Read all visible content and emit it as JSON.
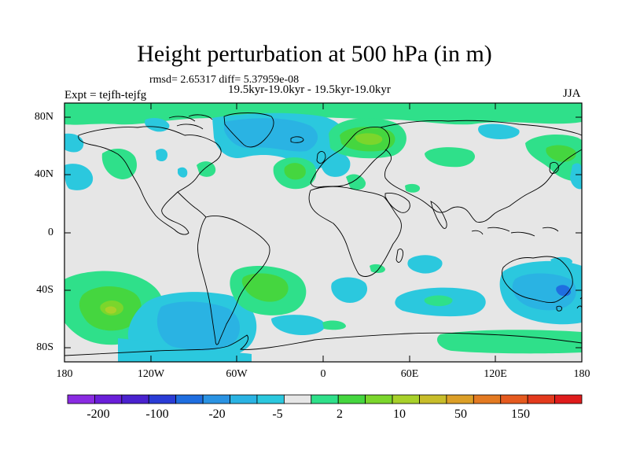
{
  "title": "Height perturbation at 500 hPa (in m)",
  "stats": "rmsd= 2.65317  diff= 5.37959e-08",
  "subtitle": "19.5kyr-19.0kyr - 19.5kyr-19.0kyr",
  "experiment": "Expt = tejfh-tejfg",
  "season": "JJA",
  "lat_ticks": [
    "80N",
    "40N",
    "0",
    "40S",
    "80S"
  ],
  "lon_ticks": [
    "180",
    "120W",
    "60W",
    "0",
    "60E",
    "120E",
    "180"
  ],
  "colorbar": {
    "labels": [
      "-200",
      "-100",
      "-20",
      "-5",
      "2",
      "10",
      "50",
      "150"
    ],
    "colors": [
      "#8a2be2",
      "#6a1fd9",
      "#4a22cf",
      "#2a3cd6",
      "#1f6ee0",
      "#2a93e3",
      "#2ab3e3",
      "#2bc8de",
      "#e6e6e6",
      "#2fe08a",
      "#45d63f",
      "#7bd62c",
      "#a8d12a",
      "#c8bd2a",
      "#dc9f27",
      "#e37a22",
      "#e55a1f",
      "#e33a1d",
      "#df1c1c"
    ]
  },
  "chart_data": {
    "type": "contour_map",
    "variable": "Height perturbation at 500 hPa",
    "units": "m",
    "projection": "cylindrical equidistant",
    "lon_range": [
      -180,
      180
    ],
    "lat_range": [
      -90,
      90
    ],
    "contour_levels": [
      -200,
      -150,
      -100,
      -50,
      -20,
      -10,
      -5,
      -2,
      2,
      5,
      10,
      20,
      50,
      100,
      150,
      200
    ]
  }
}
